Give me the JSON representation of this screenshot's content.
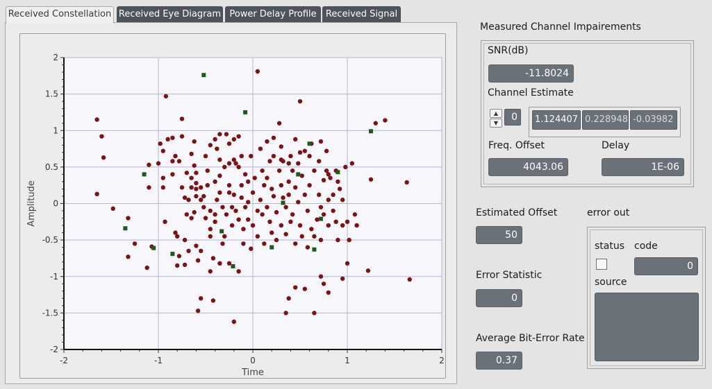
{
  "tabs": [
    {
      "label": "Received Constellation",
      "active": true
    },
    {
      "label": "Received Eye Diagram",
      "active": false
    },
    {
      "label": "Power Delay Profile",
      "active": false
    },
    {
      "label": "Received Signal",
      "active": false
    }
  ],
  "chart_data": {
    "type": "scatter",
    "xlabel": "Time",
    "ylabel": "Amplitude",
    "xlim": [
      -2,
      2
    ],
    "ylim": [
      -2,
      2
    ],
    "x_ticks": [
      "-2",
      "-1",
      "0",
      "1",
      "2"
    ],
    "y_ticks": [
      "2",
      "1.5",
      "1",
      "0.5",
      "0",
      "-0.5",
      "-1",
      "-1.5",
      "-2"
    ],
    "grid": true,
    "series": [
      {
        "marker": "circle",
        "color": "#7a1414",
        "points": [
          [
            -1.65,
            1.15
          ],
          [
            -1.6,
            0.92
          ],
          [
            -1.58,
            0.63
          ],
          [
            -1.65,
            0.13
          ],
          [
            -1.48,
            -0.07
          ],
          [
            -1.32,
            -0.2
          ],
          [
            -1.25,
            -0.55
          ],
          [
            -1.32,
            -0.73
          ],
          [
            -1.12,
            -0.88
          ],
          [
            -1.1,
            0.53
          ],
          [
            -1.1,
            0.22
          ],
          [
            -1.07,
            -0.59
          ],
          [
            -1.0,
            0.55
          ],
          [
            -0.95,
            0.35
          ],
          [
            -0.95,
            0.22
          ],
          [
            -0.85,
            0.58
          ],
          [
            -0.85,
            0.4
          ],
          [
            -0.93,
            -0.25
          ],
          [
            -0.98,
            0.82
          ],
          [
            -0.95,
            0.72
          ],
          [
            -0.92,
            1.47
          ],
          [
            -0.9,
            0.88
          ],
          [
            -0.85,
            0.9
          ],
          [
            -0.82,
            0.65
          ],
          [
            -0.78,
            0.58
          ],
          [
            -0.75,
            0.22
          ],
          [
            -0.72,
            0.08
          ],
          [
            -0.82,
            -0.4
          ],
          [
            -0.8,
            -0.45
          ],
          [
            -0.78,
            -0.72
          ],
          [
            -0.8,
            -0.85
          ],
          [
            -0.72,
            -0.84
          ],
          [
            -0.72,
            -0.5
          ],
          [
            -0.68,
            -0.65
          ],
          [
            -0.7,
            -0.15
          ],
          [
            -0.68,
            0.05
          ],
          [
            -0.75,
            1.16
          ],
          [
            -0.7,
            0.42
          ],
          [
            -0.65,
            0.68
          ],
          [
            -0.65,
            0.35
          ],
          [
            -0.65,
            0.22
          ],
          [
            -0.62,
            0.85
          ],
          [
            -0.62,
            0.52
          ],
          [
            -0.6,
            0.28
          ],
          [
            -0.6,
            0.2
          ],
          [
            -0.6,
            0.1
          ],
          [
            -0.62,
            -0.12
          ],
          [
            -0.65,
            -0.2
          ],
          [
            -0.6,
            -0.58
          ],
          [
            -0.58,
            -0.78
          ],
          [
            -0.55,
            -0.65
          ],
          [
            -0.55,
            0.22
          ],
          [
            -0.55,
            0.05
          ],
          [
            -0.52,
            0.1
          ],
          [
            -0.52,
            -0.05
          ],
          [
            -0.5,
            -0.2
          ],
          [
            -0.5,
            0.65
          ],
          [
            -0.48,
            0.45
          ],
          [
            -0.48,
            0.25
          ],
          [
            -0.45,
            0.8
          ],
          [
            -0.45,
            -0.1
          ],
          [
            -0.45,
            -0.35
          ],
          [
            -0.45,
            -0.45
          ],
          [
            -0.42,
            -0.75
          ],
          [
            -0.4,
            -0.25
          ],
          [
            -0.4,
            0.3
          ],
          [
            -0.4,
            -0.15
          ],
          [
            -0.38,
            0.75
          ],
          [
            -0.38,
            0.05
          ],
          [
            -0.35,
            0.95
          ],
          [
            -0.35,
            0.6
          ],
          [
            -0.35,
            0.38
          ],
          [
            -0.35,
            0.15
          ],
          [
            -0.32,
            -0.05
          ],
          [
            -0.32,
            -0.55
          ],
          [
            -0.3,
            0.5
          ],
          [
            -0.3,
            -0.45
          ],
          [
            -0.28,
            -0.15
          ],
          [
            -0.25,
            0.82
          ],
          [
            -0.25,
            0.55
          ],
          [
            -0.25,
            0.25
          ],
          [
            -0.25,
            0.15
          ],
          [
            -0.22,
            -0.05
          ],
          [
            -0.22,
            -0.3
          ],
          [
            -0.2,
            0.88
          ],
          [
            -0.2,
            0.6
          ],
          [
            -0.2,
            0.12
          ],
          [
            -0.18,
            0.55
          ],
          [
            -0.18,
            -0.1
          ],
          [
            -0.15,
            -0.22
          ],
          [
            -0.15,
            0.5
          ],
          [
            -0.12,
            0.65
          ],
          [
            -0.12,
            0.25
          ],
          [
            -0.12,
            0.08
          ],
          [
            -0.1,
            -0.35
          ],
          [
            -0.1,
            -0.55
          ],
          [
            -0.08,
            0.4
          ],
          [
            -0.08,
            -0.05
          ],
          [
            -0.05,
            0.3
          ],
          [
            -0.05,
            0.02
          ],
          [
            -0.05,
            -0.22
          ],
          [
            -0.02,
            -0.62
          ],
          [
            0.0,
            0.15
          ],
          [
            0.0,
            -0.3
          ],
          [
            0.02,
            0.35
          ],
          [
            0.05,
            -0.1
          ],
          [
            0.05,
            -0.45
          ],
          [
            0.08,
            0.75
          ],
          [
            0.08,
            0.05
          ],
          [
            0.1,
            0.45
          ],
          [
            0.1,
            -0.15
          ],
          [
            0.12,
            -0.55
          ],
          [
            0.12,
            0.25
          ],
          [
            0.15,
            0.85
          ],
          [
            0.15,
            0.35
          ],
          [
            0.15,
            -0.05
          ],
          [
            0.18,
            0.58
          ],
          [
            0.18,
            -0.25
          ],
          [
            0.2,
            0.2
          ],
          [
            0.2,
            -0.4
          ],
          [
            0.22,
            0.9
          ],
          [
            0.22,
            0.65
          ],
          [
            0.22,
            0.1
          ],
          [
            0.25,
            -0.12
          ],
          [
            0.25,
            -0.5
          ],
          [
            0.28,
            0.45
          ],
          [
            0.3,
            0.78
          ],
          [
            0.3,
            0.25
          ],
          [
            0.3,
            -0.3
          ],
          [
            0.32,
            0.58
          ],
          [
            0.32,
            0.08
          ],
          [
            0.35,
            -0.05
          ],
          [
            0.35,
            -0.42
          ],
          [
            0.38,
            0.3
          ],
          [
            0.38,
            0.12
          ],
          [
            0.4,
            0.65
          ],
          [
            0.4,
            -0.25
          ],
          [
            0.42,
            0.45
          ],
          [
            0.42,
            -0.15
          ],
          [
            0.45,
            0.88
          ],
          [
            0.45,
            0.22
          ],
          [
            0.45,
            -0.55
          ],
          [
            0.48,
            0.55
          ],
          [
            0.48,
            0.02
          ],
          [
            0.5,
            -0.3
          ],
          [
            0.5,
            1.4
          ],
          [
            0.52,
            0.38
          ],
          [
            0.52,
            -0.45
          ],
          [
            0.55,
            0.12
          ],
          [
            0.55,
            0.72
          ],
          [
            0.58,
            -0.1
          ],
          [
            0.58,
            -0.6
          ],
          [
            0.6,
            0.65
          ],
          [
            0.6,
            0.25
          ],
          [
            0.62,
            -0.35
          ],
          [
            0.62,
            0.82
          ],
          [
            0.65,
            0.45
          ],
          [
            0.65,
            -0.45
          ],
          [
            0.68,
            -0.22
          ],
          [
            0.7,
            0.58
          ],
          [
            0.7,
            0.12
          ],
          [
            0.72,
            -0.05
          ],
          [
            0.72,
            -0.5
          ],
          [
            0.75,
            0.32
          ],
          [
            0.75,
            -0.15
          ],
          [
            0.78,
            0.45
          ],
          [
            0.78,
            0.72
          ],
          [
            0.8,
            0.05
          ],
          [
            0.8,
            -0.3
          ],
          [
            0.82,
            0.35
          ],
          [
            0.85,
            0.12
          ],
          [
            0.88,
            0.45
          ],
          [
            0.88,
            -0.25
          ],
          [
            0.9,
            -0.5
          ],
          [
            0.92,
            0.2
          ],
          [
            0.95,
            0.05
          ],
          [
            0.95,
            -0.3
          ],
          [
            0.98,
            0.5
          ],
          [
            1.0,
            -0.25
          ],
          [
            1.02,
            -0.5
          ],
          [
            1.05,
            0.55
          ],
          [
            1.08,
            -0.15
          ],
          [
            1.1,
            -0.3
          ],
          [
            0.55,
            -1.17
          ],
          [
            0.45,
            -1.15
          ],
          [
            0.35,
            -1.5
          ],
          [
            0.38,
            -1.3
          ],
          [
            0.65,
            -1.5
          ],
          [
            0.72,
            -1.0
          ],
          [
            0.75,
            -1.1
          ],
          [
            0.8,
            -1.22
          ],
          [
            0.95,
            -1.03
          ],
          [
            1.0,
            -0.82
          ],
          [
            -0.58,
            -1.47
          ],
          [
            -0.55,
            -1.3
          ],
          [
            -0.42,
            -1.33
          ],
          [
            -0.45,
            -0.93
          ],
          [
            -0.35,
            -0.82
          ],
          [
            -0.25,
            -0.82
          ],
          [
            -0.2,
            -1.62
          ],
          [
            -0.15,
            -0.93
          ],
          [
            0.05,
            1.81
          ],
          [
            -0.75,
            0.92
          ],
          [
            1.3,
            1.1
          ],
          [
            1.4,
            1.14
          ],
          [
            1.25,
            0.33
          ],
          [
            1.22,
            -0.92
          ],
          [
            1.63,
            0.29
          ],
          [
            1.66,
            -1.04
          ],
          [
            -0.4,
            0.88
          ],
          [
            -0.28,
            0.95
          ],
          [
            0.28,
            1.1
          ],
          [
            0.38,
            0.55
          ],
          [
            0.5,
            0.7
          ],
          [
            0.72,
            0.85
          ],
          [
            0.8,
            0.4
          ],
          [
            0.9,
            0.3
          ],
          [
            0.85,
            -0.1
          ],
          [
            -0.15,
            0.92
          ],
          [
            -0.02,
            0.65
          ],
          [
            0.3,
            0.6
          ],
          [
            -0.6,
            0.42
          ]
        ]
      },
      {
        "marker": "square",
        "color": "#1e5a1e",
        "points": [
          [
            -0.52,
            1.76
          ],
          [
            -0.08,
            1.25
          ],
          [
            0.6,
            0.82
          ],
          [
            1.25,
            0.99
          ],
          [
            0.9,
            0.43
          ],
          [
            0.48,
            0.4
          ],
          [
            0.32,
            0.01
          ],
          [
            0.72,
            -0.21
          ],
          [
            0.65,
            -0.63
          ],
          [
            0.2,
            -0.6
          ],
          [
            -0.33,
            -0.38
          ],
          [
            -0.21,
            -0.86
          ],
          [
            -0.85,
            -0.69
          ],
          [
            -1.05,
            -0.61
          ],
          [
            -1.35,
            -0.34
          ],
          [
            -1.15,
            0.4
          ]
        ]
      }
    ]
  },
  "impairments": {
    "title": "Measured Channel Impairements",
    "snr_label": "SNR(dB)",
    "snr_value": "-11.8024",
    "channel_estimate_label": "Channel Estimate",
    "ce_index": "0",
    "ce_values": [
      "1.124407",
      "0.228948",
      "-0.03982"
    ],
    "freq_offset_label": "Freq. Offset",
    "freq_offset_value": "4043.06",
    "delay_label": "Delay",
    "delay_value": "1E-06"
  },
  "estimated_offset": {
    "label": "Estimated Offset",
    "value": "50"
  },
  "error_statistic": {
    "label": "Error Statistic",
    "value": "0"
  },
  "average_ber": {
    "label": "Average Bit-Error Rate",
    "value": "0.37"
  },
  "error_out": {
    "title": "error out",
    "status_label": "status",
    "code_label": "code",
    "code_value": "0",
    "source_label": "source",
    "source_value": ""
  }
}
